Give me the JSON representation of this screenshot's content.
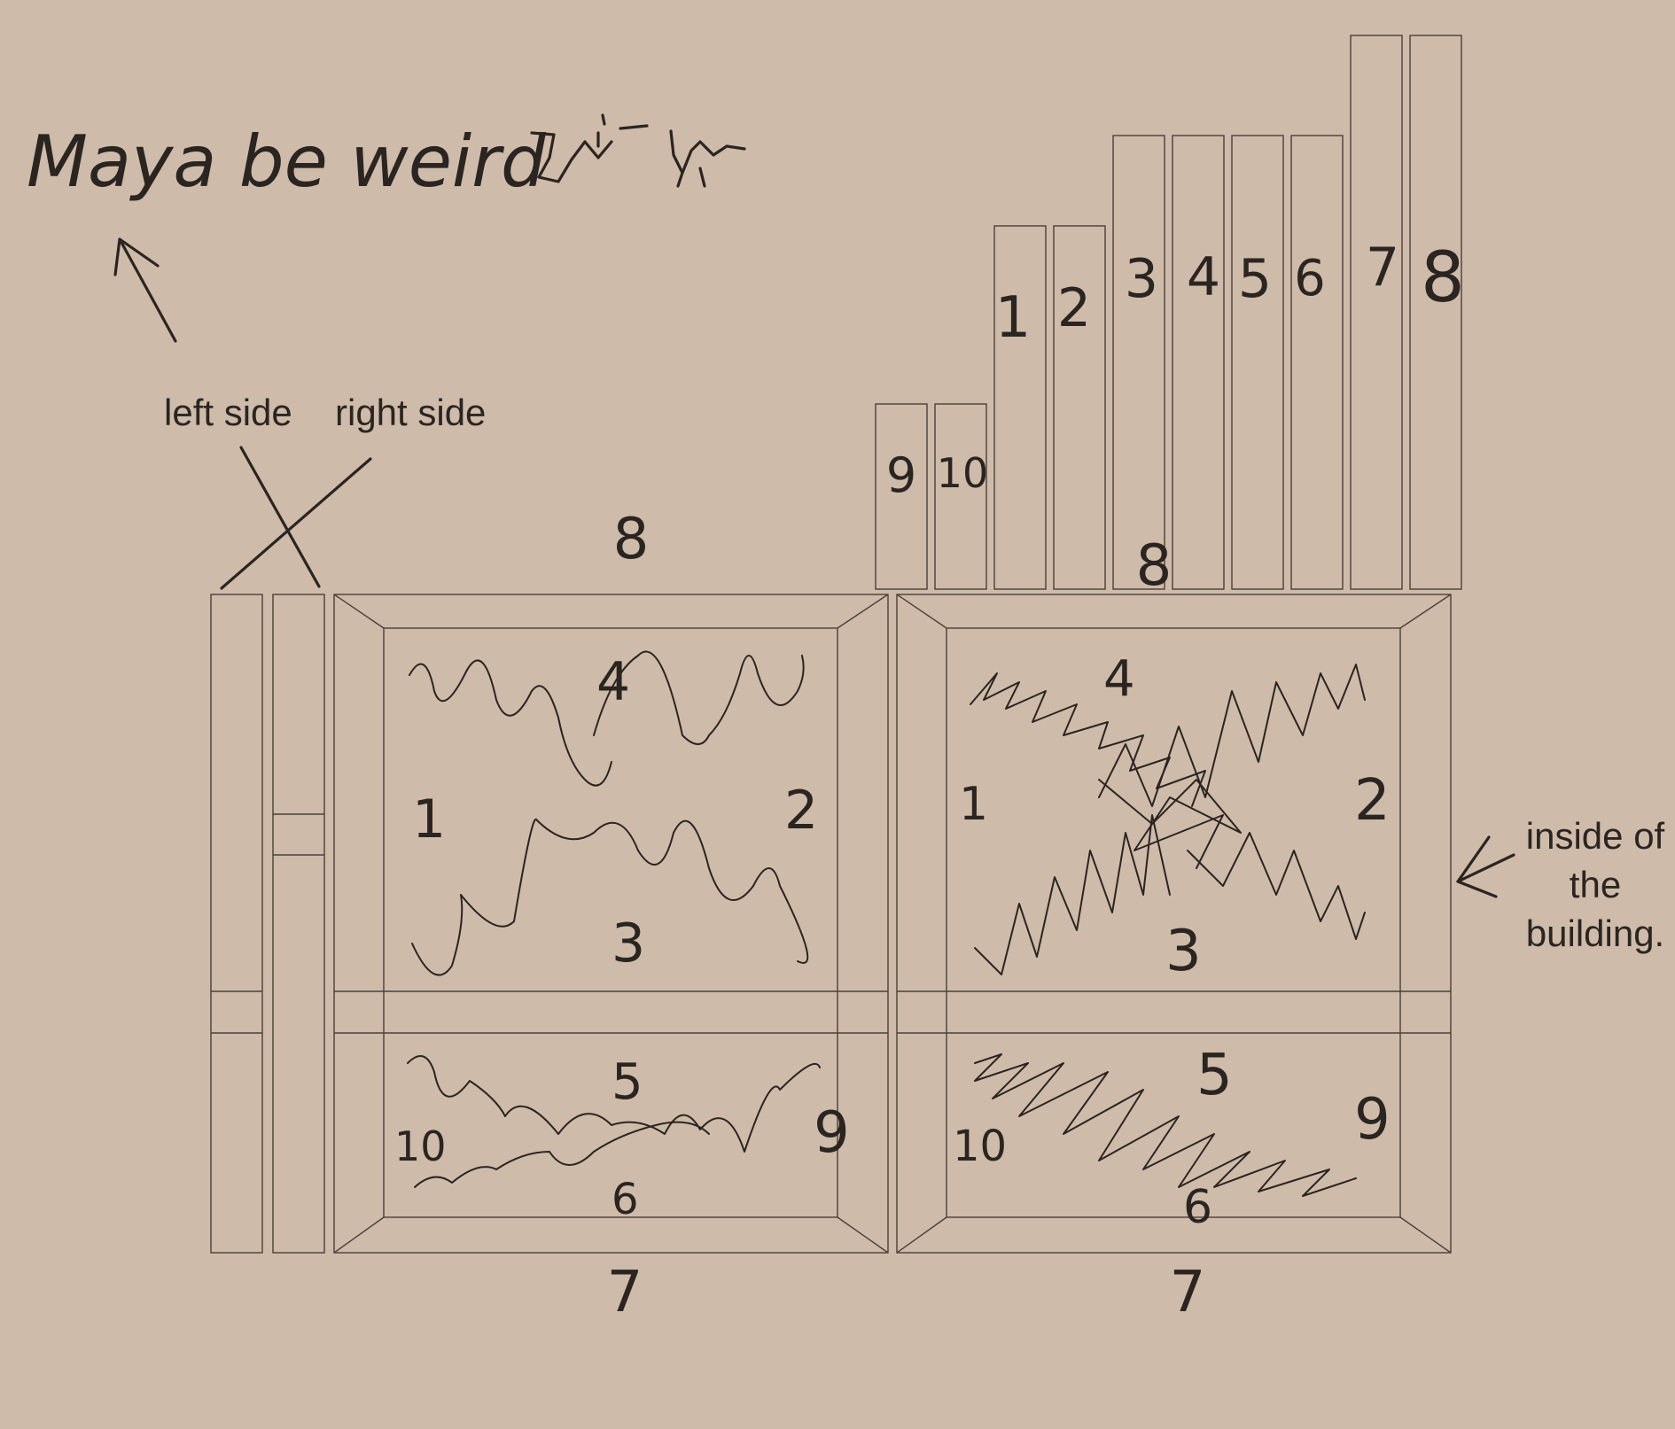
{
  "handwriting": {
    "note": "Maya be weird"
  },
  "labels": {
    "left_side": "left side",
    "right_side": "right side",
    "inside_line1": "inside of",
    "inside_line2": "the",
    "inside_line3": "building."
  },
  "planks": {
    "p1": "1",
    "p2": "2",
    "p3": "3",
    "p4": "4",
    "p5": "5",
    "p6": "6",
    "p7": "7",
    "p8": "8",
    "p9": "9",
    "p10": "10",
    "group_label": "8"
  },
  "left_panel": {
    "top": "8",
    "bottom": "7",
    "z1": "1",
    "z2": "2",
    "z3": "3",
    "z4": "4",
    "z5": "5",
    "z6": "6",
    "z9": "9",
    "z10": "10"
  },
  "right_panel": {
    "bottom": "7",
    "z1": "1",
    "z2": "2",
    "z3": "3",
    "z4": "4",
    "z5": "5",
    "z6": "6",
    "z9": "9",
    "z10": "10"
  },
  "colors": {
    "background": "#cfbbaa",
    "ink": "#2a2520",
    "outline": "#4a4039"
  }
}
